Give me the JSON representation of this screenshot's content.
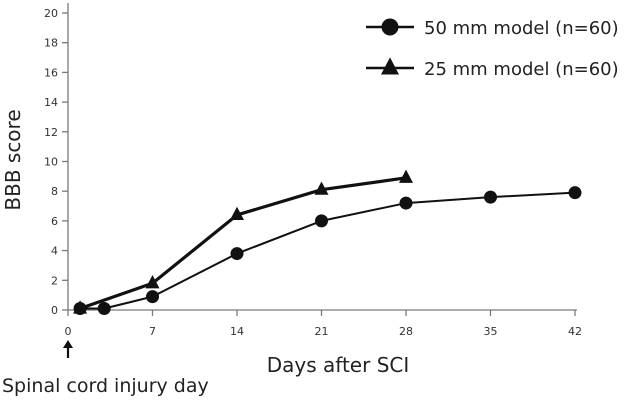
{
  "chart_data": {
    "type": "line",
    "title": "",
    "xlabel": "Days after SCI",
    "ylabel": "BBB score",
    "xlim": [
      0,
      42
    ],
    "ylim": [
      0,
      20
    ],
    "xticks": [
      0,
      7,
      14,
      21,
      28,
      35,
      42
    ],
    "yticks": [
      0,
      2,
      4,
      6,
      8,
      10,
      12,
      14,
      16,
      18,
      20
    ],
    "grid": false,
    "legend_position": "top-right",
    "series": [
      {
        "name": "50 mm model (n=60)",
        "marker": "circle",
        "color": "#111111",
        "x": [
          1,
          3,
          7,
          14,
          21,
          28,
          35,
          42
        ],
        "y": [
          0.1,
          0.1,
          0.9,
          3.8,
          6.0,
          7.2,
          7.6,
          7.9
        ]
      },
      {
        "name": "25 mm model (n=60)",
        "marker": "triangle",
        "color": "#111111",
        "x": [
          1,
          7,
          14,
          21,
          28
        ],
        "y": [
          0.1,
          1.8,
          6.4,
          8.1,
          8.9
        ]
      }
    ],
    "annotations": [
      {
        "text": "Spinal cord injury day",
        "x": 0,
        "arrow": "up"
      }
    ]
  }
}
